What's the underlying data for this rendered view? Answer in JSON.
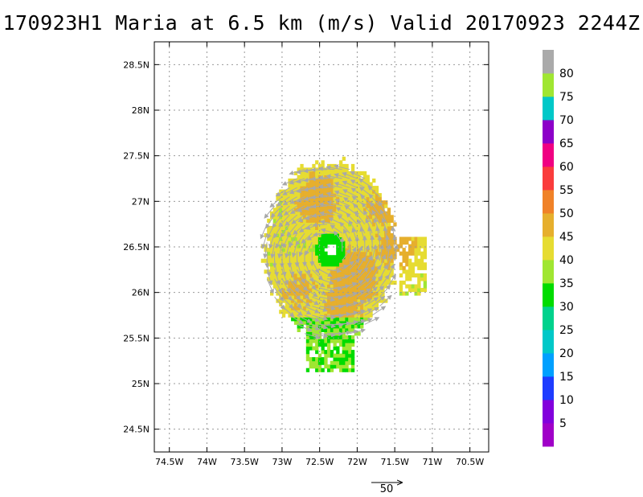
{
  "chart_data": {
    "type": "heatmap",
    "title": "170923H1 Maria at 6.5 km (m/s) Valid 20170923  2244Z",
    "x_ticks": [
      {
        "value": -74.5,
        "label": "74.5W"
      },
      {
        "value": -74,
        "label": "74W"
      },
      {
        "value": -73.5,
        "label": "73.5W"
      },
      {
        "value": -73,
        "label": "73W"
      },
      {
        "value": -72.5,
        "label": "72.5W"
      },
      {
        "value": -72,
        "label": "72W"
      },
      {
        "value": -71.5,
        "label": "71.5W"
      },
      {
        "value": -71,
        "label": "71W"
      },
      {
        "value": -70.5,
        "label": "70.5W"
      }
    ],
    "y_ticks": [
      {
        "value": 24.5,
        "label": "24.5N"
      },
      {
        "value": 25,
        "label": "25N"
      },
      {
        "value": 25.5,
        "label": "25.5N"
      },
      {
        "value": 26,
        "label": "26N"
      },
      {
        "value": 26.5,
        "label": "26.5N"
      },
      {
        "value": 27,
        "label": "27N"
      },
      {
        "value": 27.5,
        "label": "27.5N"
      },
      {
        "value": 28,
        "label": "28N"
      },
      {
        "value": 28.5,
        "label": "28.5N"
      }
    ],
    "xlim": [
      -74.7,
      -70.25
    ],
    "ylim": [
      24.25,
      28.75
    ],
    "grid": true,
    "storm_center": {
      "lon": -72.37,
      "lat": 26.45
    },
    "colorbar": {
      "levels": [
        {
          "min": 0,
          "max": 5,
          "color": "#a000c8"
        },
        {
          "min": 5,
          "max": 10,
          "color": "#8200dc"
        },
        {
          "min": 10,
          "max": 15,
          "color": "#1e3cff"
        },
        {
          "min": 15,
          "max": 20,
          "color": "#00a0ff"
        },
        {
          "min": 20,
          "max": 25,
          "color": "#00c8c8"
        },
        {
          "min": 25,
          "max": 30,
          "color": "#00d28c"
        },
        {
          "min": 30,
          "max": 35,
          "color": "#00dc00"
        },
        {
          "min": 35,
          "max": 40,
          "color": "#a0e632"
        },
        {
          "min": 40,
          "max": 45,
          "color": "#e6dc32"
        },
        {
          "min": 45,
          "max": 50,
          "color": "#e6af2d"
        },
        {
          "min": 50,
          "max": 55,
          "color": "#f08228"
        },
        {
          "min": 55,
          "max": 60,
          "color": "#fa3c3c"
        },
        {
          "min": 60,
          "max": 65,
          "color": "#f00082"
        },
        {
          "min": 65,
          "max": 70,
          "color": "#8c00c8"
        },
        {
          "min": 70,
          "max": 75,
          "color": "#00c8c8"
        },
        {
          "min": 75,
          "max": 80,
          "color": "#a0e632"
        },
        {
          "min": 80,
          "max": 85,
          "color": "#aaaaaa"
        }
      ],
      "labels": [
        "5",
        "10",
        "15",
        "20",
        "25",
        "30",
        "35",
        "40",
        "45",
        "50",
        "55",
        "60",
        "65",
        "70",
        "75",
        "80"
      ]
    },
    "wind_max_field": [
      {
        "lon": -72.55,
        "lat": 27.0,
        "value": 47
      },
      {
        "lon": -72.05,
        "lat": 26.15,
        "value": 48
      },
      {
        "lon": -72.2,
        "lat": 25.85,
        "value": 47
      },
      {
        "lon": -71.5,
        "lat": 26.5,
        "value": 47
      },
      {
        "lon": -72.8,
        "lat": 26.0,
        "value": 46
      },
      {
        "lon": -71.7,
        "lat": 26.9,
        "value": 46
      }
    ],
    "reference_vector": {
      "label": "50",
      "value": 50
    }
  }
}
